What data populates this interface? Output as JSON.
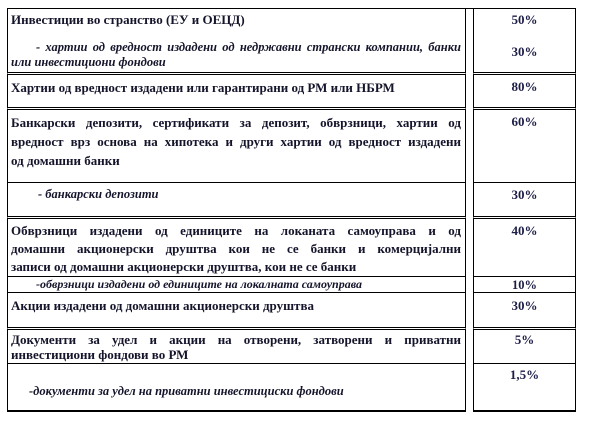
{
  "table": {
    "rows": [
      {
        "title": "Инвестиции во странство (ЕУ и ОЕЦД)",
        "sub_line1": "- хартии од вредност издадени од недржавни странски компании, банки",
        "sub_line2": "или инвестициони  фондови",
        "pct": "50%",
        "pct_sub": "30%"
      },
      {
        "title": "Хартии од вредност издадени или гарантирани од РМ или НБРМ",
        "pct": "80%"
      },
      {
        "line1": "Банкарски депозити, сертификати за депозит, обврзници, хартии од",
        "line2": "вредност врз основа на хипотека и други хартии од вредност издадени",
        "line3": "од домашни банки",
        "pct": "60%"
      },
      {
        "sub": "- банкарски депозити",
        "pct": "30%"
      },
      {
        "line1": "Обврзници издадени од единиците на локаната самоуправа и од",
        "line2": "домашни акционерски друштва кои не се банки и комерцијални",
        "line3": "записи од домашни акционерски друштва, кои не се банки",
        "pct": "40%"
      },
      {
        "sub": "-обврзници издадени од единиците на локалната самоуправа",
        "pct": "10%"
      },
      {
        "title": "Акции издадени од домашни акционерски друштва",
        "pct": "30%"
      },
      {
        "line1": "Документи за удел и акции на отворени, затворени и приватни",
        "line2": "инвестициони фондови во РМ",
        "pct": "5%"
      },
      {
        "sub": "-документи за удел на приватни инвестициски фондови",
        "pct": "1,5%"
      }
    ]
  }
}
